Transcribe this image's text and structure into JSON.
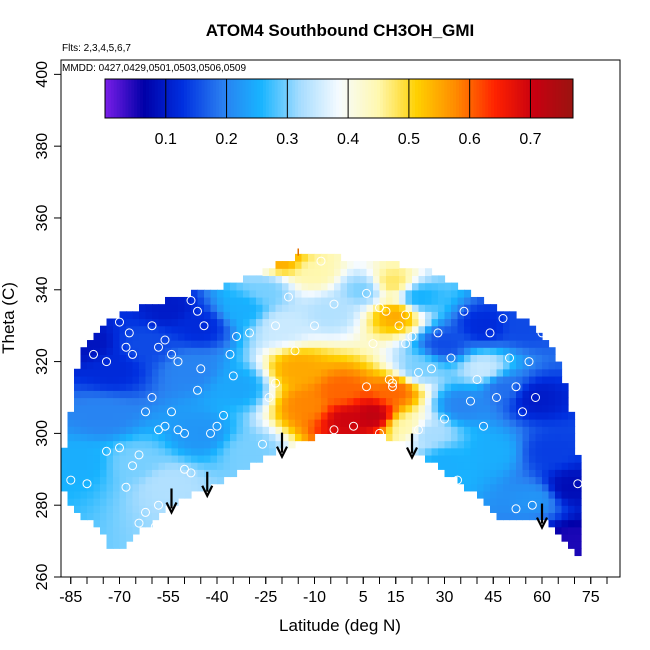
{
  "chart_data": {
    "type": "heatmap",
    "title": "ATOM4 Southbound CH3OH_GMI",
    "annotations": [
      "Flts: 2,3,4,5,6,7",
      "MMDD: 0427,0429,0501,0503,0506,0509"
    ],
    "xlabel": "Latitude (deg N)",
    "ylabel": "Theta (C)",
    "xlim": [
      -88,
      84
    ],
    "ylim": [
      260,
      404
    ],
    "xticks": [
      -85,
      -70,
      -55,
      -40,
      -25,
      -10,
      5,
      15,
      30,
      45,
      60,
      75
    ],
    "yticks": [
      260,
      280,
      300,
      320,
      340,
      360,
      380,
      400
    ],
    "colorbar": {
      "vmin": 0.0,
      "vmax": 0.77,
      "ticks": [
        0.1,
        0.2,
        0.3,
        0.4,
        0.5,
        0.6,
        0.7
      ],
      "colors": [
        "#7a1ee8",
        "#0000a8",
        "#0030e0",
        "#2a7ef0",
        "#18b4ff",
        "#a6dcff",
        "#f6fbff",
        "#fff8b0",
        "#ffd000",
        "#ff8a00",
        "#ff2200",
        "#c80010",
        "#9a1410"
      ]
    },
    "lower_boundary": [
      [
        -88,
        287
      ],
      [
        -84,
        279
      ],
      [
        -80,
        276
      ],
      [
        -76,
        273
      ],
      [
        -73,
        269
      ],
      [
        -70,
        268
      ],
      [
        -67,
        271
      ],
      [
        -62,
        274
      ],
      [
        -57,
        279
      ],
      [
        -52,
        281
      ],
      [
        -45,
        284
      ],
      [
        -38,
        287
      ],
      [
        -30,
        291
      ],
      [
        -22,
        295
      ],
      [
        -14,
        298
      ],
      [
        -8,
        300
      ],
      [
        0,
        300
      ],
      [
        8,
        300
      ],
      [
        16,
        298
      ],
      [
        24,
        293
      ],
      [
        32,
        288
      ],
      [
        40,
        283
      ],
      [
        46,
        277
      ],
      [
        52,
        277
      ],
      [
        60,
        276
      ],
      [
        66,
        271
      ],
      [
        72,
        266
      ]
    ],
    "upper_boundary": [
      [
        -88,
        290
      ],
      [
        -86,
        300
      ],
      [
        -84,
        312
      ],
      [
        -82,
        322
      ],
      [
        -78,
        328
      ],
      [
        -72,
        332
      ],
      [
        -64,
        335
      ],
      [
        -56,
        337
      ],
      [
        -48,
        339
      ],
      [
        -40,
        340
      ],
      [
        -34,
        342
      ],
      [
        -28,
        344
      ],
      [
        -22,
        347
      ],
      [
        -16,
        349
      ],
      [
        -10,
        350
      ],
      [
        -2,
        349
      ],
      [
        4,
        348
      ],
      [
        10,
        347
      ],
      [
        16,
        347
      ],
      [
        22,
        346
      ],
      [
        28,
        344
      ],
      [
        34,
        341
      ],
      [
        40,
        338
      ],
      [
        46,
        335
      ],
      [
        52,
        333
      ],
      [
        58,
        330
      ],
      [
        62,
        325
      ],
      [
        66,
        318
      ],
      [
        68,
        310
      ],
      [
        70,
        300
      ],
      [
        72,
        287
      ],
      [
        72,
        266
      ]
    ],
    "field_anchors": [
      {
        "lat": -80,
        "theta": 325,
        "value": 0.09
      },
      {
        "lat": -72,
        "theta": 318,
        "value": 0.12
      },
      {
        "lat": -62,
        "theta": 325,
        "value": 0.15
      },
      {
        "lat": -55,
        "theta": 335,
        "value": 0.1
      },
      {
        "lat": -45,
        "theta": 330,
        "value": 0.12
      },
      {
        "lat": -48,
        "theta": 318,
        "value": 0.2
      },
      {
        "lat": -75,
        "theta": 305,
        "value": 0.2
      },
      {
        "lat": -82,
        "theta": 292,
        "value": 0.25
      },
      {
        "lat": -65,
        "theta": 292,
        "value": 0.3
      },
      {
        "lat": -55,
        "theta": 286,
        "value": 0.33
      },
      {
        "lat": -45,
        "theta": 300,
        "value": 0.22
      },
      {
        "lat": -33,
        "theta": 313,
        "value": 0.24
      },
      {
        "lat": -30,
        "theta": 295,
        "value": 0.3
      },
      {
        "lat": -32,
        "theta": 335,
        "value": 0.25
      },
      {
        "lat": -25,
        "theta": 340,
        "value": 0.3
      },
      {
        "lat": -20,
        "theta": 330,
        "value": 0.35
      },
      {
        "lat": -20,
        "theta": 349,
        "value": 0.55
      },
      {
        "lat": -10,
        "theta": 345,
        "value": 0.45
      },
      {
        "lat": -5,
        "theta": 334,
        "value": 0.33
      },
      {
        "lat": 5,
        "theta": 340,
        "value": 0.3
      },
      {
        "lat": 14,
        "theta": 342,
        "value": 0.48
      },
      {
        "lat": 15,
        "theta": 333,
        "value": 0.55
      },
      {
        "lat": 22,
        "theta": 338,
        "value": 0.25
      },
      {
        "lat": -15,
        "theta": 318,
        "value": 0.55
      },
      {
        "lat": -12,
        "theta": 308,
        "value": 0.58
      },
      {
        "lat": -2,
        "theta": 312,
        "value": 0.6
      },
      {
        "lat": 0,
        "theta": 304,
        "value": 0.7
      },
      {
        "lat": 8,
        "theta": 305,
        "value": 0.72
      },
      {
        "lat": 15,
        "theta": 312,
        "value": 0.6
      },
      {
        "lat": 18,
        "theta": 302,
        "value": 0.45
      },
      {
        "lat": 22,
        "theta": 318,
        "value": 0.3
      },
      {
        "lat": 25,
        "theta": 300,
        "value": 0.32
      },
      {
        "lat": 30,
        "theta": 325,
        "value": 0.15
      },
      {
        "lat": 35,
        "theta": 308,
        "value": 0.2
      },
      {
        "lat": 30,
        "theta": 292,
        "value": 0.25
      },
      {
        "lat": 42,
        "theta": 318,
        "value": 0.35
      },
      {
        "lat": 48,
        "theta": 313,
        "value": 0.18
      },
      {
        "lat": 42,
        "theta": 330,
        "value": 0.12
      },
      {
        "lat": 55,
        "theta": 330,
        "value": 0.15
      },
      {
        "lat": 45,
        "theta": 295,
        "value": 0.25
      },
      {
        "lat": 58,
        "theta": 310,
        "value": 0.1
      },
      {
        "lat": 62,
        "theta": 295,
        "value": 0.14
      },
      {
        "lat": 58,
        "theta": 282,
        "value": 0.22
      },
      {
        "lat": 68,
        "theta": 285,
        "value": 0.08
      },
      {
        "lat": 70,
        "theta": 270,
        "value": 0.05
      }
    ],
    "sample_points": [
      [
        -85,
        287
      ],
      [
        -80,
        286
      ],
      [
        -78,
        322
      ],
      [
        -74,
        320
      ],
      [
        -70,
        331
      ],
      [
        -68,
        324
      ],
      [
        -67,
        328
      ],
      [
        -66,
        322
      ],
      [
        -60,
        330
      ],
      [
        -58,
        324
      ],
      [
        -56,
        326
      ],
      [
        -54,
        322
      ],
      [
        -52,
        320
      ],
      [
        -48,
        337
      ],
      [
        -46,
        334
      ],
      [
        -44,
        330
      ],
      [
        -74,
        295
      ],
      [
        -70,
        296
      ],
      [
        -68,
        285
      ],
      [
        -66,
        291
      ],
      [
        -64,
        294
      ],
      [
        -62,
        306
      ],
      [
        -60,
        310
      ],
      [
        -58,
        301
      ],
      [
        -56,
        302
      ],
      [
        -54,
        306
      ],
      [
        -52,
        301
      ],
      [
        -50,
        300
      ],
      [
        -50,
        290
      ],
      [
        -48,
        289
      ],
      [
        -46,
        312
      ],
      [
        -45,
        318
      ],
      [
        -42,
        300
      ],
      [
        -40,
        302
      ],
      [
        -38,
        305
      ],
      [
        -36,
        322
      ],
      [
        -35,
        316
      ],
      [
        -34,
        327
      ],
      [
        -30,
        328
      ],
      [
        -28,
        290
      ],
      [
        -26,
        297
      ],
      [
        -24,
        310
      ],
      [
        -22,
        314
      ],
      [
        -22,
        330
      ],
      [
        -18,
        338
      ],
      [
        -16,
        323
      ],
      [
        -10,
        330
      ],
      [
        -8,
        348
      ],
      [
        -4,
        336
      ],
      [
        6,
        339
      ],
      [
        8,
        325
      ],
      [
        10,
        335
      ],
      [
        12,
        334
      ],
      [
        13,
        315
      ],
      [
        14,
        313
      ],
      [
        16,
        330
      ],
      [
        18,
        333
      ],
      [
        18,
        325
      ],
      [
        20,
        327
      ],
      [
        -4,
        301
      ],
      [
        2,
        302
      ],
      [
        6,
        313
      ],
      [
        10,
        300
      ],
      [
        14,
        314
      ],
      [
        22,
        317
      ],
      [
        22,
        301
      ],
      [
        26,
        318
      ],
      [
        28,
        328
      ],
      [
        30,
        304
      ],
      [
        32,
        321
      ],
      [
        36,
        334
      ],
      [
        38,
        309
      ],
      [
        40,
        315
      ],
      [
        42,
        302
      ],
      [
        44,
        328
      ],
      [
        46,
        310
      ],
      [
        48,
        332
      ],
      [
        50,
        321
      ],
      [
        52,
        313
      ],
      [
        54,
        306
      ],
      [
        56,
        320
      ],
      [
        58,
        310
      ],
      [
        52,
        279
      ],
      [
        57,
        280
      ],
      [
        60,
        328
      ],
      [
        34,
        287
      ],
      [
        -59,
        274
      ],
      [
        -58,
        280
      ],
      [
        -62,
        278
      ],
      [
        -60,
        268
      ],
      [
        -64,
        275
      ],
      [
        -57,
        269
      ],
      [
        71,
        286
      ]
    ],
    "arrows_lat": [
      -54,
      -43,
      -20,
      20,
      60
    ],
    "arrow_marker_lat": [
      -15
    ]
  }
}
